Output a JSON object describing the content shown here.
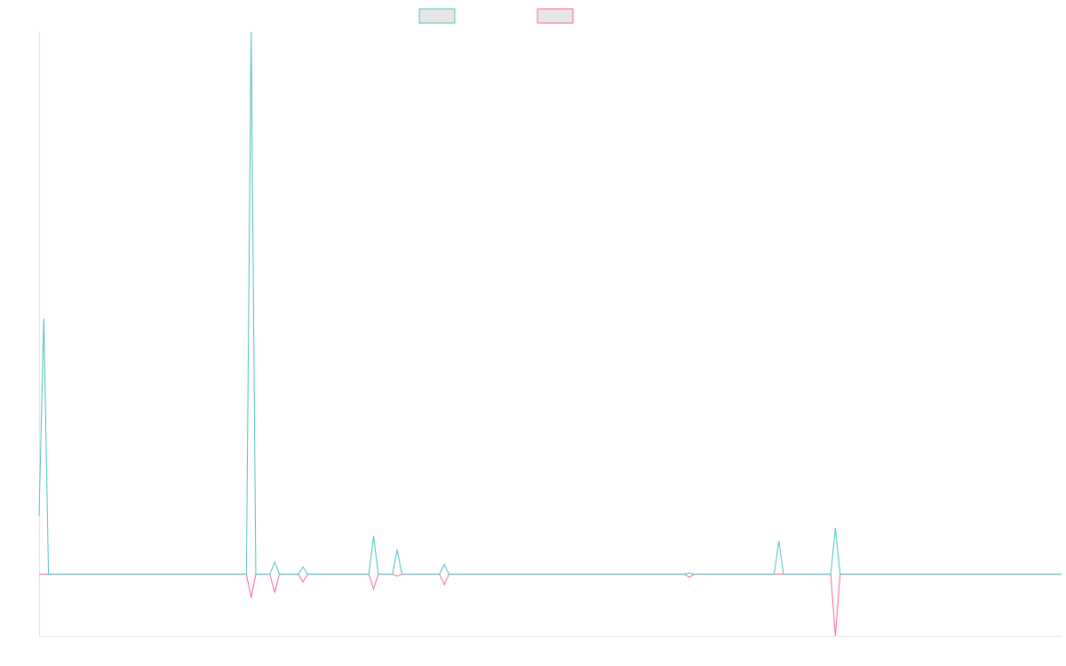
{
  "chart_data": {
    "type": "line",
    "title": "",
    "xlabel": "",
    "ylabel": "",
    "grid": false,
    "legend_placement": "top-center",
    "x": [
      0,
      1,
      2,
      3,
      4,
      5,
      6,
      7,
      8,
      9,
      10,
      11,
      12,
      13,
      14,
      15,
      16,
      17,
      18,
      19,
      20,
      21,
      22,
      23,
      24,
      25,
      26,
      27,
      28,
      29,
      30,
      31,
      32,
      33,
      34,
      35,
      36,
      37,
      38,
      39,
      40,
      41,
      42,
      43,
      44,
      45,
      46,
      47,
      48,
      49,
      50,
      51,
      52,
      53,
      54,
      55,
      56,
      57,
      58,
      59,
      60,
      61,
      62,
      63,
      64,
      65,
      66,
      67,
      68,
      69,
      70,
      71,
      72,
      73,
      74,
      75,
      76,
      77,
      78,
      79,
      80,
      81,
      82,
      83,
      84,
      85,
      86,
      87,
      88,
      89,
      90,
      91,
      92,
      93,
      94,
      95,
      96,
      97,
      98,
      99,
      100,
      101,
      102,
      103,
      104,
      105,
      106,
      107,
      108,
      109,
      110,
      111,
      112,
      113,
      114,
      115,
      116,
      117,
      118,
      119,
      120,
      121,
      122,
      123,
      124,
      125,
      126,
      127,
      128,
      129,
      130,
      131,
      132,
      133,
      134,
      135,
      136,
      137,
      138,
      139,
      140,
      141,
      142,
      143,
      144,
      145,
      146,
      147,
      148,
      149,
      150,
      151,
      152,
      153,
      154,
      155,
      156,
      157,
      158,
      159,
      160,
      161,
      162,
      163,
      164,
      165,
      166,
      167,
      168,
      169,
      170,
      171,
      172,
      173,
      174,
      175,
      176,
      177,
      178,
      179,
      180,
      181,
      182,
      183,
      184,
      185,
      186,
      187,
      188,
      189,
      190,
      191,
      192,
      193,
      194,
      195,
      196,
      197,
      198,
      199,
      200,
      201,
      202,
      203,
      204,
      205,
      206,
      207,
      208,
      209,
      210,
      211,
      212,
      213,
      214,
      215,
      216,
      217
    ],
    "ylim": [
      -10,
      88
    ],
    "series": [
      {
        "color": "#4bc0c0",
        "points": [
          [
            0,
            9.5
          ],
          [
            1,
            41.5
          ],
          [
            2,
            0
          ],
          [
            44,
            0
          ],
          [
            45,
            88
          ],
          [
            46,
            0
          ],
          [
            49,
            0
          ],
          [
            50,
            2
          ],
          [
            51,
            0
          ],
          [
            55,
            0
          ],
          [
            56,
            1.2
          ],
          [
            57,
            0
          ],
          [
            70,
            0
          ],
          [
            71,
            6.2
          ],
          [
            72,
            0
          ],
          [
            75,
            0
          ],
          [
            76,
            4
          ],
          [
            77,
            0
          ],
          [
            85,
            0
          ],
          [
            86,
            1.6
          ],
          [
            87,
            0
          ],
          [
            137,
            0
          ],
          [
            138,
            0.2
          ],
          [
            139,
            0
          ],
          [
            156,
            0
          ],
          [
            157,
            5.4
          ],
          [
            158,
            0
          ],
          [
            168,
            0
          ],
          [
            169,
            7.5
          ],
          [
            170,
            0
          ],
          [
            217,
            0
          ]
        ]
      },
      {
        "color": "#ff6384",
        "points": [
          [
            0,
            0
          ],
          [
            44,
            0
          ],
          [
            45,
            -3.8
          ],
          [
            46,
            0
          ],
          [
            49,
            0
          ],
          [
            50,
            -3
          ],
          [
            51,
            0
          ],
          [
            55,
            0
          ],
          [
            56,
            -1.3
          ],
          [
            57,
            0
          ],
          [
            70,
            0
          ],
          [
            71,
            -2.4
          ],
          [
            72,
            0
          ],
          [
            75,
            0
          ],
          [
            76,
            -0.3
          ],
          [
            77,
            0
          ],
          [
            85,
            0
          ],
          [
            86,
            -1.7
          ],
          [
            87,
            0
          ],
          [
            137,
            0
          ],
          [
            138,
            -0.5
          ],
          [
            139,
            0
          ],
          [
            168,
            0
          ],
          [
            169,
            -10
          ],
          [
            170,
            0
          ],
          [
            217,
            0
          ]
        ]
      }
    ],
    "legend": [
      {
        "color": "#4bc0c0",
        "fill": "#e6e6e6"
      },
      {
        "color": "#ff6384",
        "fill": "#e6e6e6"
      }
    ]
  }
}
